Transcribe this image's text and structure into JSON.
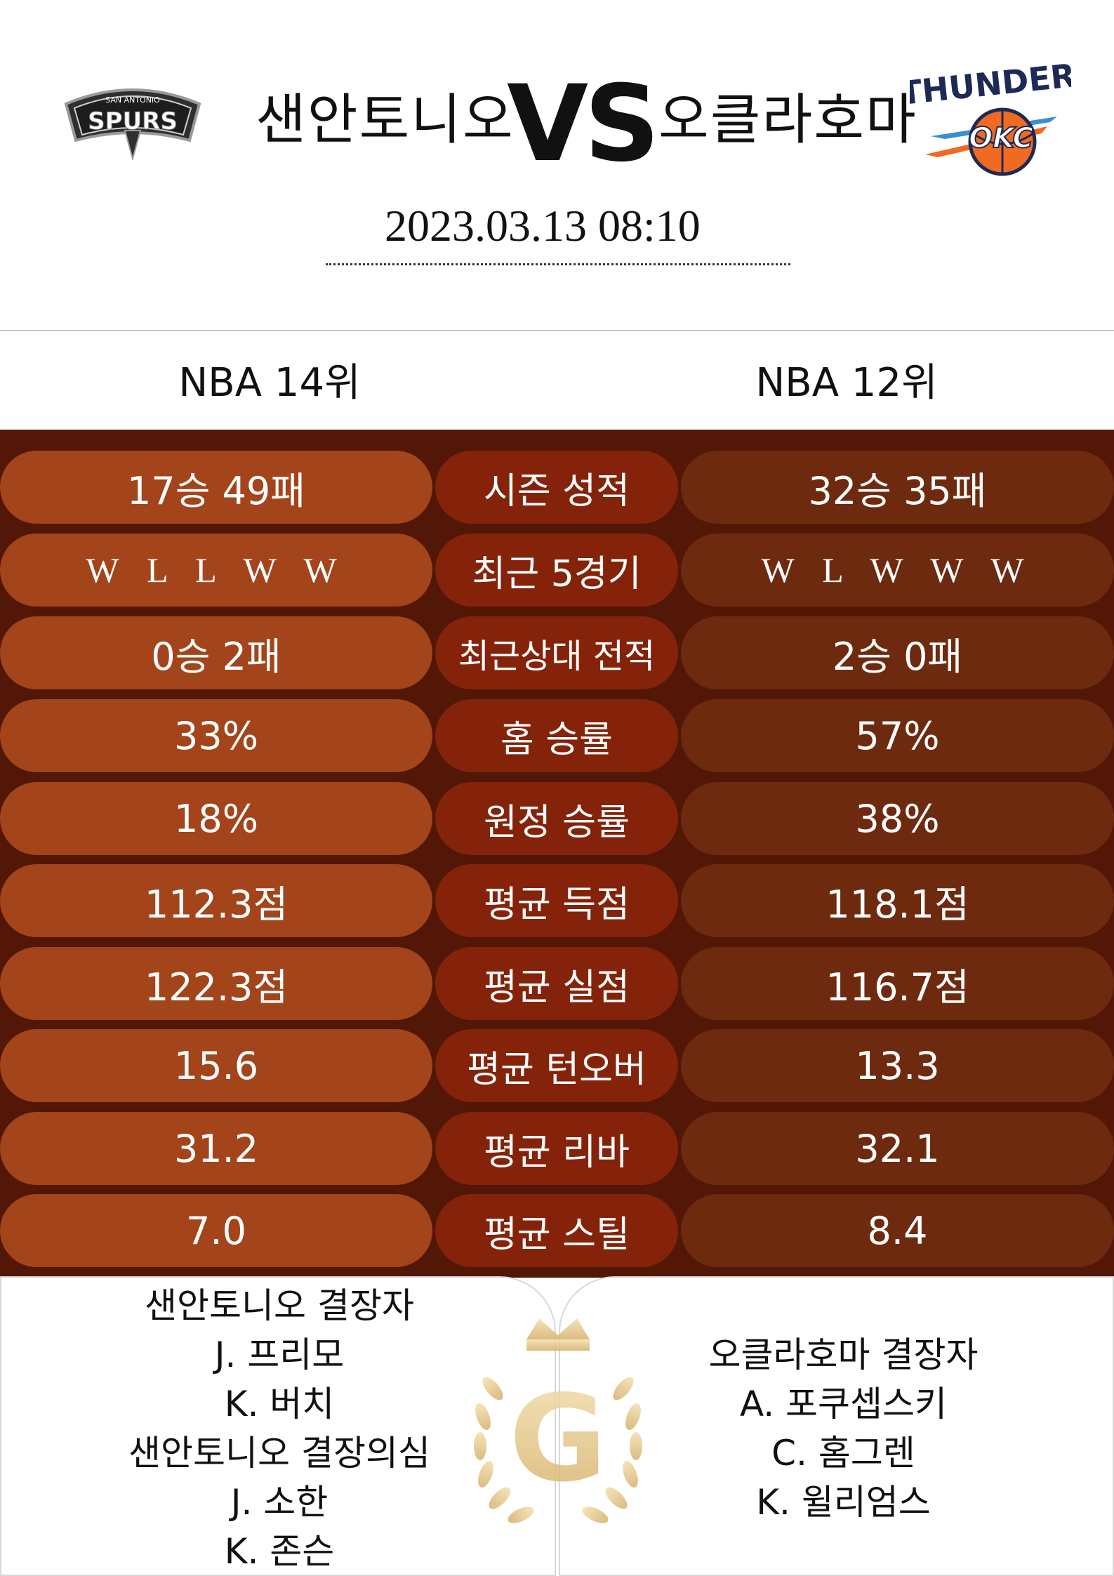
{
  "header": {
    "home_team": "샌안토니오",
    "vs": "VS",
    "away_team": "오클라호마",
    "datetime": "2023.03.13  08:10",
    "home_logo_icon": "spurs-logo",
    "away_logo_icon": "thunder-logo"
  },
  "ranks": {
    "home": "NBA 14위",
    "away": "NBA 12위"
  },
  "stats": [
    {
      "home": "17승 49패",
      "label": "시즌 성적",
      "away": "32승 35패"
    },
    {
      "home": "W L L W W",
      "label": "최근 5경기",
      "away": "W L W W W"
    },
    {
      "home": "0승 2패",
      "label": "최근상대 전적",
      "away": "2승 0패"
    },
    {
      "home": "33%",
      "label": "홈 승률",
      "away": "57%"
    },
    {
      "home": "18%",
      "label": "원정 승률",
      "away": "38%"
    },
    {
      "home": "112.3점",
      "label": "평균 득점",
      "away": "118.1점"
    },
    {
      "home": "122.3점",
      "label": "평균 실점",
      "away": "116.7점"
    },
    {
      "home": "15.6",
      "label": "평균 턴오버",
      "away": "13.3"
    },
    {
      "home": "31.2",
      "label": "평균 리바",
      "away": "32.1"
    },
    {
      "home": "7.0",
      "label": "평균 스틸",
      "away": "8.4"
    }
  ],
  "injuries": {
    "home": [
      "샌안토니오 결장자",
      "J. 프리모",
      "K. 버치",
      "샌안토니오 결장의심",
      "J. 소한",
      "K. 존슨"
    ],
    "away": [
      "오클라호마 결장자",
      "A. 포쿠셉스키",
      "C. 홈그렌",
      "K. 윌리엄스"
    ]
  },
  "watermark": {
    "letter": "G",
    "icon": "crown-laurel-icon"
  },
  "colors": {
    "background_dark": "#521706",
    "home_pill": "#a3441b",
    "label_pill": "#85230a",
    "away_pill": "#6e2a0f",
    "gold": "#e0c48a"
  }
}
